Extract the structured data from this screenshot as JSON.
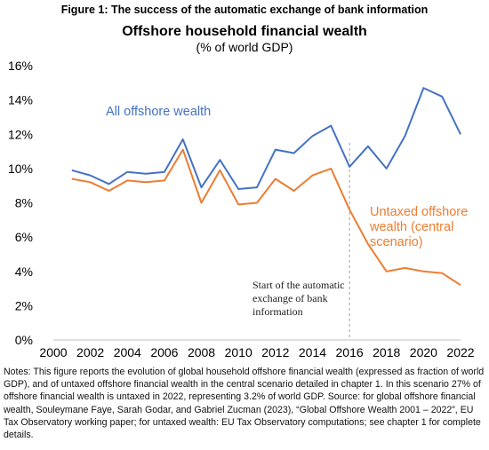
{
  "figure_label": "Figure 1: The success of the automatic exchange of bank information",
  "notes": "Notes: This figure reports the evolution of global household offshore financial wealth (expressed as fraction of world GDP), and of untaxed offshore financial wealth in the central scenario detailed in chapter 1. In this scenario 27% of offshore financial wealth is untaxed in 2022, representing 3.2% of world GDP. Source: for global offshore financial wealth, Souleymane Faye, Sarah Godar, and Gabriel Zucman (2023), “Global Offshore Wealth 2001 – 2022”, EU Tax Observatory working paper; for untaxed wealth: EU Tax Observatory computations; see chapter 1 for complete details.",
  "chart_data": {
    "type": "line",
    "title": "Offshore household financial wealth",
    "subtitle": "(% of world GDP)",
    "xlabel": "",
    "ylabel": "",
    "xlim": [
      2000,
      2022
    ],
    "ylim": [
      0,
      16
    ],
    "x_ticks": [
      "2000",
      "2002",
      "2004",
      "2006",
      "2008",
      "2010",
      "2012",
      "2014",
      "2016",
      "2018",
      "2020",
      "2022"
    ],
    "y_ticks": [
      "0%",
      "2%",
      "4%",
      "6%",
      "8%",
      "10%",
      "12%",
      "14%",
      "16%"
    ],
    "grid": false,
    "x": [
      2001,
      2002,
      2003,
      2004,
      2005,
      2006,
      2007,
      2008,
      2009,
      2010,
      2011,
      2012,
      2013,
      2014,
      2015,
      2016,
      2017,
      2018,
      2019,
      2020,
      2021,
      2022
    ],
    "series": [
      {
        "name": "All offshore wealth",
        "color": "#4472C4",
        "values": [
          9.9,
          9.6,
          9.1,
          9.8,
          9.7,
          9.8,
          11.7,
          8.9,
          10.5,
          8.8,
          8.9,
          11.1,
          10.9,
          11.9,
          12.5,
          10.1,
          11.3,
          10.0,
          11.9,
          14.7,
          14.2,
          12.0
        ]
      },
      {
        "name": "Untaxed offshore wealth (central scenario)",
        "color": "#ED7D31",
        "values": [
          9.4,
          9.2,
          8.7,
          9.3,
          9.2,
          9.3,
          11.1,
          8.0,
          9.9,
          7.9,
          8.0,
          9.4,
          8.7,
          9.6,
          10.0,
          7.6,
          5.6,
          4.0,
          4.2,
          4.0,
          3.9,
          3.2
        ]
      }
    ],
    "series_labels": {
      "all": [
        "All offshore wealth"
      ],
      "untaxed": [
        "Untaxed offshore",
        "wealth (central",
        "scenario)"
      ]
    },
    "annotation": {
      "x": 2016,
      "lines": [
        "Start of the automatic",
        "exchange of bank",
        "information"
      ]
    }
  }
}
